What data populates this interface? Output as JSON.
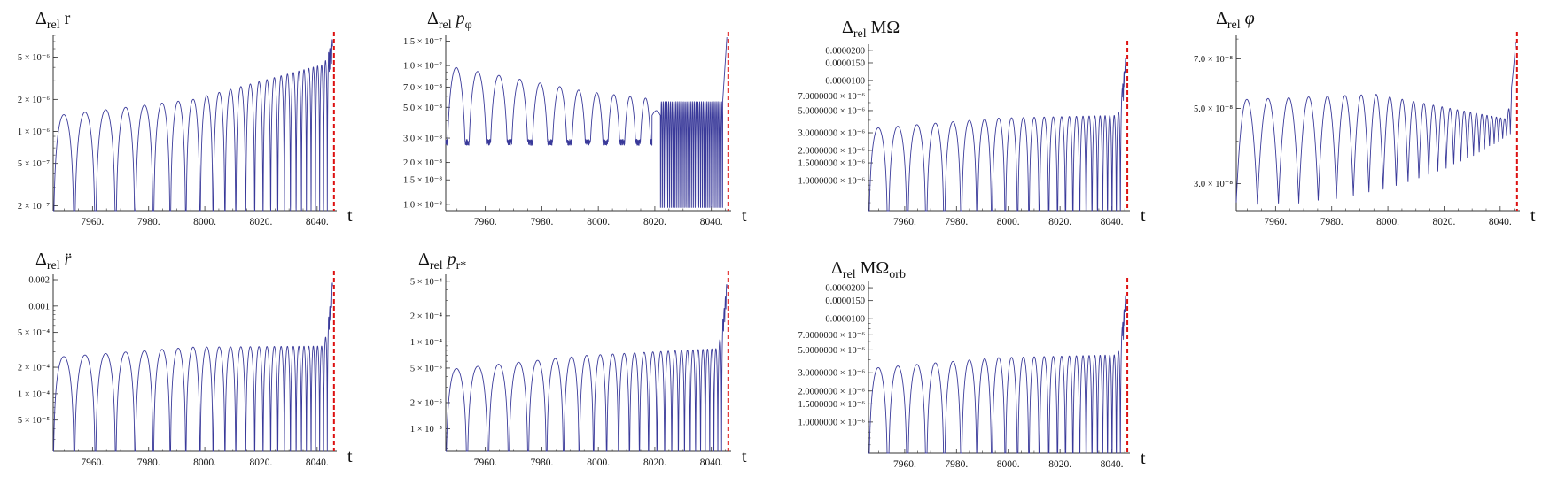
{
  "chart_data": [
    {
      "id": "r",
      "type": "line",
      "title": "Δrel r",
      "title_main": "Δ",
      "title_sub": "rel",
      "title_sym": "r",
      "xlabel": "t",
      "xlim": [
        7946,
        8047
      ],
      "xticks": [
        7960,
        7980,
        8000,
        8020,
        8040
      ],
      "xtick_labels": [
        "7960.",
        "7980.",
        "8000.",
        "8020.",
        "8040."
      ],
      "yscale": "log",
      "ylim": [
        1.8e-07,
        8e-06
      ],
      "yticks": [
        2e-07,
        5e-07,
        1e-06,
        2e-06,
        5e-06
      ],
      "ytick_labels": [
        "2 × 10⁻⁷",
        "5 × 10⁻⁷",
        "1 × 10⁻⁶",
        "2 × 10⁻⁶",
        "5 × 10⁻⁶"
      ],
      "merger_time": 8046,
      "series": [
        {
          "color": "#3a3a9a",
          "shape": "abs-oscillation",
          "t_start": 7946,
          "t_end": 8045.5,
          "period_start": 7.6,
          "period_end": 1.2,
          "env_start": 1.4e-06,
          "env_mid": 2e-06,
          "env_end": 4.5e-06,
          "spike_peak": 7.5e-06,
          "trough_floor": 1.8e-07
        }
      ],
      "grid": false
    },
    {
      "id": "pphi",
      "type": "line",
      "title": "Δrel pφ",
      "title_main": "Δ",
      "title_sub": "rel",
      "title_sym": "p",
      "title_sym_sub": "φ",
      "xlabel": "t",
      "xlim": [
        7946,
        8047
      ],
      "xticks": [
        7960,
        7980,
        8000,
        8020,
        8040
      ],
      "xtick_labels": [
        "7960.",
        "7980.",
        "8000.",
        "8020.",
        "8040."
      ],
      "yscale": "log",
      "ylim": [
        9e-09,
        1.65e-07
      ],
      "yticks": [
        1e-08,
        1.5e-08,
        2e-08,
        3e-08,
        5e-08,
        7e-08,
        1e-07,
        1.5e-07
      ],
      "ytick_labels": [
        "1.0 × 10⁻⁸",
        "1.5 × 10⁻⁸",
        "2.0 × 10⁻⁸",
        "3.0 × 10⁻⁸",
        "5.0 × 10⁻⁸",
        "7.0 × 10⁻⁸",
        "1.0 × 10⁻⁷",
        "1.5 × 10⁻⁷"
      ],
      "merger_time": 8046,
      "series": [
        {
          "color": "#3a3a9a",
          "shape": "abs-oscillation-then-fast",
          "t_start": 7946,
          "t_end": 8045.5,
          "period_start": 7.6,
          "period_end": 3.5,
          "env_start": 1e-07,
          "env_mid": 6.5e-08,
          "env_end": 5e-08,
          "fast_start": 8022,
          "fast_env": 5.5e-08,
          "spike_peak": 1.6e-07,
          "trough_floor": 2.8e-08
        }
      ],
      "grid": false
    },
    {
      "id": "MOmega",
      "type": "line",
      "title": "Δrel MΩ",
      "title_main": "Δ",
      "title_sub": "rel",
      "title_sym": "MΩ",
      "xlabel": "t",
      "xlim": [
        7946,
        8047
      ],
      "xticks": [
        7960,
        7980,
        8000,
        8020,
        8040
      ],
      "xtick_labels": [
        "7960.",
        "7980.",
        "8000.",
        "8020.",
        "8040."
      ],
      "yscale": "log",
      "ylim": [
        5e-07,
        2.3e-05
      ],
      "yticks": [
        1e-06,
        1.5e-06,
        2e-06,
        3e-06,
        5e-06,
        7e-06,
        1e-05,
        1.5e-05,
        2e-05
      ],
      "ytick_labels": [
        "1.0000000 × 10⁻⁶",
        "1.5000000 × 10⁻⁶",
        "2.0000000 × 10⁻⁶",
        "3.0000000 × 10⁻⁶",
        "5.0000000 × 10⁻⁶",
        "7.0000000 × 10⁻⁶",
        "0.0000100",
        "0.0000150",
        "0.0000200"
      ],
      "merger_time": 8046,
      "series": [
        {
          "color": "#3a3a9a",
          "shape": "abs-oscillation",
          "t_start": 7946,
          "t_end": 8045.5,
          "period_start": 7.6,
          "period_end": 1.4,
          "env_start": 3.3e-06,
          "env_mid": 4.2e-06,
          "env_end": 4.5e-06,
          "spike_peak": 2e-05,
          "trough_floor": 5e-07
        }
      ],
      "grid": false
    },
    {
      "id": "phi",
      "type": "line",
      "title": "Δrel φ",
      "title_main": "Δ",
      "title_sub": "rel",
      "title_sym": "φ",
      "xlabel": "t",
      "xlim": [
        7946,
        8047
      ],
      "xticks": [
        7960,
        7980,
        8000,
        8020,
        8040
      ],
      "xtick_labels": [
        "7960.",
        "7980.",
        "8000.",
        "8020.",
        "8040."
      ],
      "yscale": "log",
      "ylim": [
        2.5e-08,
        8.2e-08
      ],
      "yticks": [
        3e-08,
        5e-08,
        7e-08
      ],
      "ytick_labels": [
        "3.0 × 10⁻⁸",
        "5.0 × 10⁻⁸",
        "7.0 × 10⁻⁸"
      ],
      "merger_time": 8046,
      "series": [
        {
          "color": "#3a3a9a",
          "shape": "abs-oscillation-floor",
          "t_start": 7946,
          "t_end": 8045.5,
          "period_start": 7.6,
          "period_end": 1.2,
          "env_start": 5.3e-08,
          "env_mid": 5.5e-08,
          "env_end": 4.6e-08,
          "spike_peak": 7.8e-08,
          "trough_floor": 2.6e-08,
          "baseline_end": 4.3e-08
        }
      ],
      "grid": false
    },
    {
      "id": "rddot",
      "type": "line",
      "title": "Δrel r̈",
      "title_main": "Δ",
      "title_sub": "rel",
      "title_sym": "r̈",
      "xlabel": "t",
      "xlim": [
        7946,
        8047
      ],
      "xticks": [
        7960,
        7980,
        8000,
        8020,
        8040
      ],
      "xtick_labels": [
        "7960.",
        "7980.",
        "8000.",
        "8020.",
        "8040."
      ],
      "yscale": "log",
      "ylim": [
        2.2e-05,
        0.0023
      ],
      "yticks": [
        5e-05,
        0.0001,
        0.0002,
        0.0005,
        0.001,
        0.002
      ],
      "ytick_labels": [
        "5 × 10⁻⁵",
        "1 × 10⁻⁴",
        "2 × 10⁻⁴",
        "5 × 10⁻⁴",
        "0.001",
        "0.002"
      ],
      "merger_time": 8046,
      "series": [
        {
          "color": "#3a3a9a",
          "shape": "abs-oscillation",
          "t_start": 7946,
          "t_end": 8045.5,
          "period_start": 7.6,
          "period_end": 1.2,
          "env_start": 0.00026,
          "env_mid": 0.00034,
          "env_end": 0.00035,
          "spike_peak": 0.002,
          "trough_floor": 2.2e-05
        }
      ],
      "grid": false
    },
    {
      "id": "prstar",
      "type": "line",
      "title": "Δrel pr*",
      "title_main": "Δ",
      "title_sub": "rel",
      "title_sym": "p",
      "title_sym_sub": "r*",
      "xlabel": "t",
      "xlim": [
        7946,
        8047
      ],
      "xticks": [
        7960,
        7980,
        8000,
        8020,
        8040
      ],
      "xtick_labels": [
        "7960.",
        "7980.",
        "8000.",
        "8020.",
        "8040."
      ],
      "yscale": "log",
      "ylim": [
        5.5e-06,
        0.0006
      ],
      "yticks": [
        1e-05,
        2e-05,
        5e-05,
        0.0001,
        0.0002,
        0.0005
      ],
      "ytick_labels": [
        "1 × 10⁻⁵",
        "2 × 10⁻⁵",
        "5 × 10⁻⁵",
        "1 × 10⁻⁴",
        "2 × 10⁻⁴",
        "5 × 10⁻⁴"
      ],
      "merger_time": 8046,
      "series": [
        {
          "color": "#3a3a9a",
          "shape": "abs-oscillation",
          "t_start": 7946,
          "t_end": 8045.5,
          "period_start": 7.6,
          "period_end": 1.2,
          "env_start": 4.8e-05,
          "env_mid": 7e-05,
          "env_end": 8.5e-05,
          "spike_peak": 0.0005,
          "trough_floor": 5.5e-06
        }
      ],
      "grid": false
    },
    {
      "id": "MOmegaorb",
      "type": "line",
      "title": "Δrel MΩorb",
      "title_main": "Δ",
      "title_sub": "rel",
      "title_sym": "MΩ",
      "title_sym_sub": "orb",
      "xlabel": "t",
      "xlim": [
        7946,
        8047
      ],
      "xticks": [
        7960,
        7980,
        8000,
        8020,
        8040
      ],
      "xtick_labels": [
        "7960.",
        "7980.",
        "8000.",
        "8020.",
        "8040."
      ],
      "yscale": "log",
      "ylim": [
        5e-07,
        2.3e-05
      ],
      "yticks": [
        1e-06,
        1.5e-06,
        2e-06,
        3e-06,
        5e-06,
        7e-06,
        1e-05,
        1.5e-05,
        2e-05
      ],
      "ytick_labels": [
        "1.0000000 × 10⁻⁶",
        "1.5000000 × 10⁻⁶",
        "2.0000000 × 10⁻⁶",
        "3.0000000 × 10⁻⁶",
        "5.0000000 × 10⁻⁶",
        "7.0000000 × 10⁻⁶",
        "0.0000100",
        "0.0000150",
        "0.0000200"
      ],
      "merger_time": 8046,
      "series": [
        {
          "color": "#3a3a9a",
          "shape": "abs-oscillation",
          "t_start": 7946,
          "t_end": 8045.5,
          "period_start": 7.6,
          "period_end": 1.4,
          "env_start": 3.3e-06,
          "env_mid": 4.2e-06,
          "env_end": 4.5e-06,
          "spike_peak": 2e-05,
          "trough_floor": 5e-07
        }
      ],
      "grid": false
    }
  ],
  "style": {
    "line_color": "#3a3a9a",
    "merger_line_color": "#dd1111",
    "axis_color": "#333333",
    "tick_label_color": "#111111"
  }
}
